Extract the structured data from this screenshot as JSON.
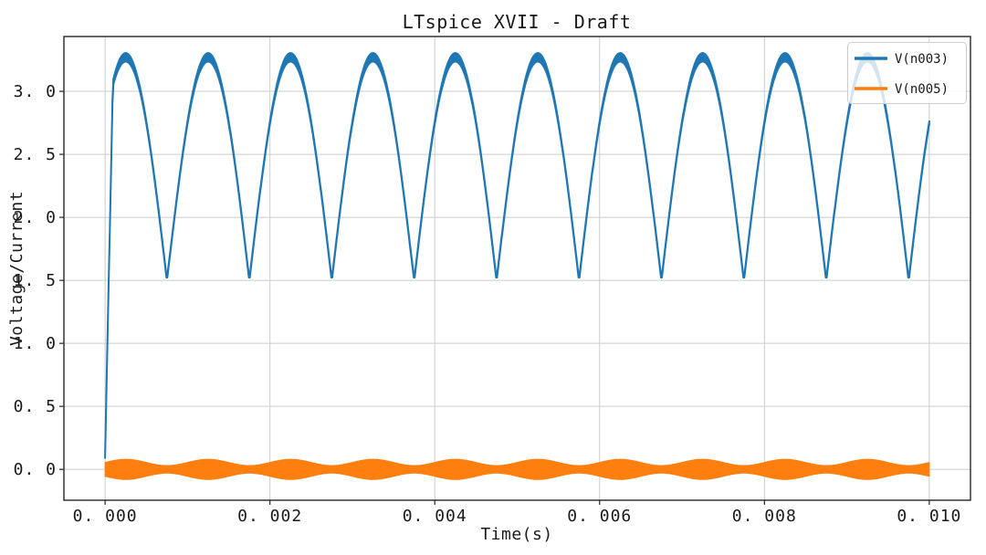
{
  "chart_data": {
    "type": "line",
    "title": "LTspice XVII - Draft",
    "xlabel": "Time(s)",
    "ylabel": "Voltage/Current",
    "xlim": [
      -0.0005,
      0.0105
    ],
    "ylim": [
      -0.245,
      3.435
    ],
    "grid": true,
    "xticks": [
      {
        "value": 0.0,
        "label": "0. 000"
      },
      {
        "value": 0.002,
        "label": "0. 002"
      },
      {
        "value": 0.004,
        "label": "0. 004"
      },
      {
        "value": 0.006,
        "label": "0. 006"
      },
      {
        "value": 0.008,
        "label": "0. 008"
      },
      {
        "value": 0.01,
        "label": "0. 010"
      }
    ],
    "yticks": [
      {
        "value": 0.0,
        "label": "0. 0"
      },
      {
        "value": 0.5,
        "label": "0. 5"
      },
      {
        "value": 1.0,
        "label": "1. 0"
      },
      {
        "value": 1.5,
        "label": "1. 5"
      },
      {
        "value": 2.0,
        "label": "2. 0"
      },
      {
        "value": 2.5,
        "label": "2. 5"
      },
      {
        "value": 3.0,
        "label": "3. 0"
      }
    ],
    "legend": {
      "position": "upper right",
      "entries": [
        "V(n003)",
        "V(n005)"
      ]
    },
    "series": [
      {
        "name": "V(n003)",
        "color": "#1f77b4",
        "waveform": "rectified_sine_band",
        "description": "Full-wave-rectified ~1 kHz sine riding on a 1.5 V floor, peaks ~3.27 V, with small high-frequency ripple (trace thickens near peaks); starts at ~0.1 V at t=0 and rises almost vertically; clipped mid-rise at ~2.75 V at t=0.010 s",
        "params": {
          "base": 1.5,
          "amplitude": 1.77,
          "period_s": 0.001,
          "peak_time_s": 0.00025,
          "start_value": 0.1,
          "rise_time_s": 0.0001,
          "ripple_halfwidth_min": 0.009,
          "ripple_halfwidth_max": 0.034,
          "t_start": 0.0,
          "t_end": 0.01
        },
        "key_levels": {
          "valley": 1.5,
          "peak": 3.27,
          "end_value": 2.75
        }
      },
      {
        "name": "V(n005)",
        "color": "#ff7f0e",
        "waveform": "am_band",
        "description": "High-frequency oscillation centered on 0 V whose envelope beats at ~1 kHz between about ±0.03 and ±0.08 (appears as a solid modulated band)",
        "params": {
          "center": 0.0,
          "envelope_mid": 0.055,
          "envelope_amp": 0.025,
          "beat_period_s": 0.001,
          "bulge_time_s": 0.00025,
          "t_start": 0.0,
          "t_end": 0.01
        },
        "key_levels": {
          "envelope_max": 0.08,
          "envelope_min": 0.03
        }
      }
    ]
  }
}
